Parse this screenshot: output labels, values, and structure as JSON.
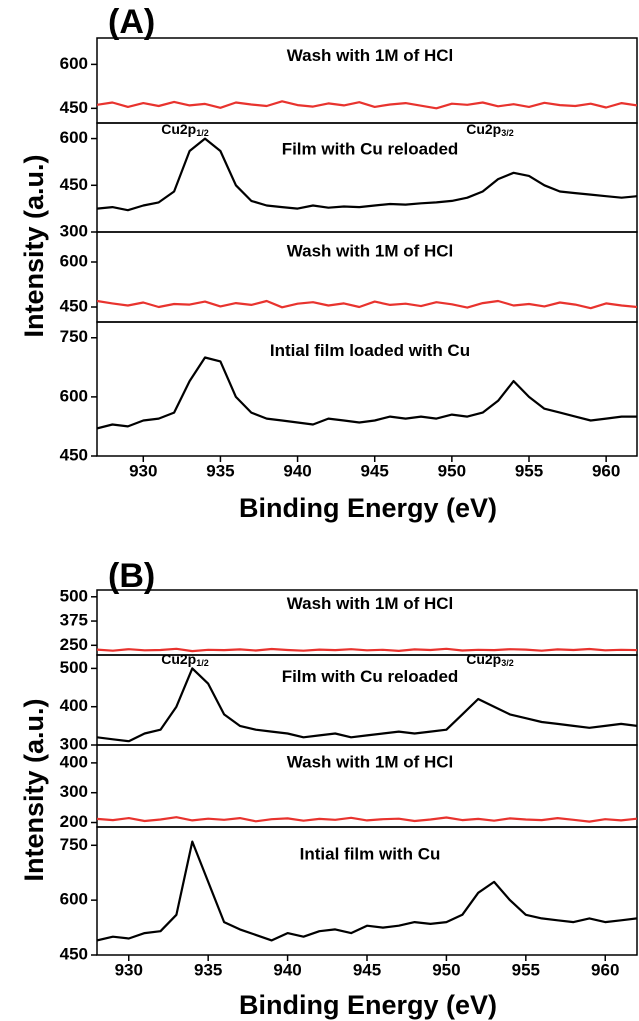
{
  "panels": [
    {
      "label": "(A)",
      "y_label": "Intensity (a.u.)",
      "x_label": "Binding Energy (eV)"
    },
    {
      "label": "(B)",
      "y_label": "Intensity (a.u.)",
      "x_label": "Binding Energy (eV)"
    }
  ],
  "chart_data": [
    {
      "type": "line",
      "title": "Wash with 1M of HCl",
      "color": "#e8332e",
      "xlim": [
        927,
        962
      ],
      "x": [
        927,
        928,
        929,
        930,
        931,
        932,
        933,
        934,
        935,
        936,
        937,
        938,
        939,
        940,
        941,
        942,
        943,
        944,
        945,
        946,
        947,
        948,
        949,
        950,
        951,
        952,
        953,
        954,
        955,
        956,
        957,
        958,
        959,
        960,
        961,
        962
      ],
      "values": [
        462,
        470,
        455,
        468,
        458,
        472,
        460,
        465,
        452,
        470,
        463,
        458,
        474,
        461,
        456,
        467,
        460,
        471,
        455,
        463,
        468,
        459,
        450,
        466,
        462,
        470,
        457,
        464,
        455,
        469,
        461,
        458,
        466,
        453,
        468,
        460
      ],
      "ylim": [
        400,
        690
      ],
      "yticks": [
        450,
        600
      ]
    },
    {
      "type": "line",
      "title": "Film with Cu reloaded",
      "color": "#000000",
      "xlim": [
        927,
        962
      ],
      "annotations": [
        {
          "text": "Cu2p",
          "sub": "1/2"
        },
        {
          "text": "Cu2p",
          "sub": "3/2"
        }
      ],
      "x": [
        927,
        928,
        929,
        930,
        931,
        932,
        933,
        934,
        935,
        936,
        937,
        938,
        939,
        940,
        941,
        942,
        943,
        944,
        945,
        946,
        947,
        948,
        949,
        950,
        951,
        952,
        953,
        954,
        955,
        956,
        957,
        958,
        959,
        960,
        961,
        962
      ],
      "values": [
        375,
        380,
        370,
        385,
        395,
        430,
        560,
        600,
        560,
        450,
        400,
        385,
        380,
        375,
        385,
        378,
        382,
        380,
        385,
        390,
        388,
        392,
        395,
        400,
        410,
        430,
        470,
        490,
        480,
        450,
        430,
        425,
        420,
        415,
        410,
        415
      ],
      "ylim": [
        300,
        650
      ],
      "yticks": [
        300,
        450,
        600
      ]
    },
    {
      "type": "line",
      "title": "Wash with 1M of HCl",
      "color": "#e8332e",
      "xlim": [
        927,
        962
      ],
      "x": [
        927,
        928,
        929,
        930,
        931,
        932,
        933,
        934,
        935,
        936,
        937,
        938,
        939,
        940,
        941,
        942,
        943,
        944,
        945,
        946,
        947,
        948,
        949,
        950,
        951,
        952,
        953,
        954,
        955,
        956,
        957,
        958,
        959,
        960,
        961,
        962
      ],
      "values": [
        470,
        462,
        455,
        465,
        450,
        460,
        458,
        468,
        452,
        463,
        457,
        470,
        449,
        461,
        466,
        455,
        462,
        450,
        468,
        457,
        461,
        453,
        466,
        459,
        448,
        463,
        470,
        455,
        460,
        452,
        465,
        458,
        446,
        462,
        455,
        450
      ],
      "ylim": [
        400,
        700
      ],
      "yticks": [
        450,
        600
      ]
    },
    {
      "type": "line",
      "title": "Intial film loaded with Cu",
      "color": "#000000",
      "xlim": [
        927,
        962
      ],
      "x": [
        927,
        928,
        929,
        930,
        931,
        932,
        933,
        934,
        935,
        936,
        937,
        938,
        939,
        940,
        941,
        942,
        943,
        944,
        945,
        946,
        947,
        948,
        949,
        950,
        951,
        952,
        953,
        954,
        955,
        956,
        957,
        958,
        959,
        960,
        961,
        962
      ],
      "values": [
        520,
        530,
        525,
        540,
        545,
        560,
        640,
        700,
        690,
        600,
        560,
        545,
        540,
        535,
        530,
        545,
        540,
        535,
        540,
        550,
        545,
        550,
        545,
        555,
        550,
        560,
        590,
        640,
        600,
        570,
        560,
        550,
        540,
        545,
        550,
        550
      ],
      "ylim": [
        450,
        790
      ],
      "yticks": [
        450,
        600,
        750
      ],
      "xticks": [
        930,
        935,
        940,
        945,
        950,
        955,
        960
      ]
    },
    {
      "type": "line",
      "title": "Wash with 1M of HCl",
      "color": "#e8332e",
      "xlim": [
        928,
        962
      ],
      "x": [
        928,
        929,
        930,
        931,
        932,
        933,
        934,
        935,
        936,
        937,
        938,
        939,
        940,
        941,
        942,
        943,
        944,
        945,
        946,
        947,
        948,
        949,
        950,
        951,
        952,
        953,
        954,
        955,
        956,
        957,
        958,
        959,
        960,
        961,
        962
      ],
      "values": [
        228,
        222,
        230,
        224,
        226,
        232,
        220,
        227,
        225,
        229,
        223,
        231,
        226,
        222,
        228,
        225,
        230,
        224,
        227,
        221,
        229,
        226,
        232,
        223,
        227,
        225,
        230,
        228,
        222,
        229,
        226,
        231,
        224,
        227,
        225
      ],
      "ylim": [
        200,
        535
      ],
      "yticks": [
        250,
        375,
        500
      ]
    },
    {
      "type": "line",
      "title": "Film with Cu reloaded",
      "color": "#000000",
      "xlim": [
        928,
        962
      ],
      "annotations": [
        {
          "text": "Cu2p",
          "sub": "1/2"
        },
        {
          "text": "Cu2p",
          "sub": "3/2"
        }
      ],
      "x": [
        928,
        929,
        930,
        931,
        932,
        933,
        934,
        935,
        936,
        937,
        938,
        939,
        940,
        941,
        942,
        943,
        944,
        945,
        946,
        947,
        948,
        949,
        950,
        951,
        952,
        953,
        954,
        955,
        956,
        957,
        958,
        959,
        960,
        961,
        962
      ],
      "values": [
        320,
        315,
        310,
        330,
        340,
        400,
        500,
        460,
        380,
        350,
        340,
        335,
        330,
        320,
        325,
        330,
        320,
        325,
        330,
        335,
        330,
        335,
        340,
        380,
        420,
        400,
        380,
        370,
        360,
        355,
        350,
        345,
        350,
        355,
        350
      ],
      "ylim": [
        300,
        535
      ],
      "yticks": [
        300,
        400,
        500
      ]
    },
    {
      "type": "line",
      "title": "Wash with 1M of HCl",
      "color": "#e8332e",
      "xlim": [
        928,
        962
      ],
      "x": [
        928,
        929,
        930,
        931,
        932,
        933,
        934,
        935,
        936,
        937,
        938,
        939,
        940,
        941,
        942,
        943,
        944,
        945,
        946,
        947,
        948,
        949,
        950,
        951,
        952,
        953,
        954,
        955,
        956,
        957,
        958,
        959,
        960,
        961,
        962
      ],
      "values": [
        212,
        208,
        215,
        205,
        210,
        218,
        207,
        213,
        209,
        215,
        204,
        211,
        214,
        206,
        212,
        209,
        216,
        207,
        211,
        213,
        205,
        210,
        217,
        208,
        212,
        206,
        214,
        210,
        208,
        215,
        209,
        203,
        211,
        207,
        213
      ],
      "ylim": [
        185,
        460
      ],
      "yticks": [
        200,
        300,
        400
      ]
    },
    {
      "type": "line",
      "title": "Intial film with Cu",
      "color": "#000000",
      "xlim": [
        928,
        962
      ],
      "x": [
        928,
        929,
        930,
        931,
        932,
        933,
        934,
        935,
        936,
        937,
        938,
        939,
        940,
        941,
        942,
        943,
        944,
        945,
        946,
        947,
        948,
        949,
        950,
        951,
        952,
        953,
        954,
        955,
        956,
        957,
        958,
        959,
        960,
        961,
        962
      ],
      "values": [
        490,
        500,
        495,
        510,
        515,
        560,
        760,
        650,
        540,
        520,
        505,
        490,
        510,
        500,
        515,
        520,
        510,
        530,
        525,
        530,
        540,
        535,
        540,
        560,
        620,
        650,
        600,
        560,
        550,
        545,
        540,
        550,
        540,
        545,
        550
      ],
      "ylim": [
        450,
        800
      ],
      "yticks": [
        450,
        600,
        750
      ],
      "xticks": [
        930,
        935,
        940,
        945,
        950,
        955,
        960
      ]
    }
  ]
}
